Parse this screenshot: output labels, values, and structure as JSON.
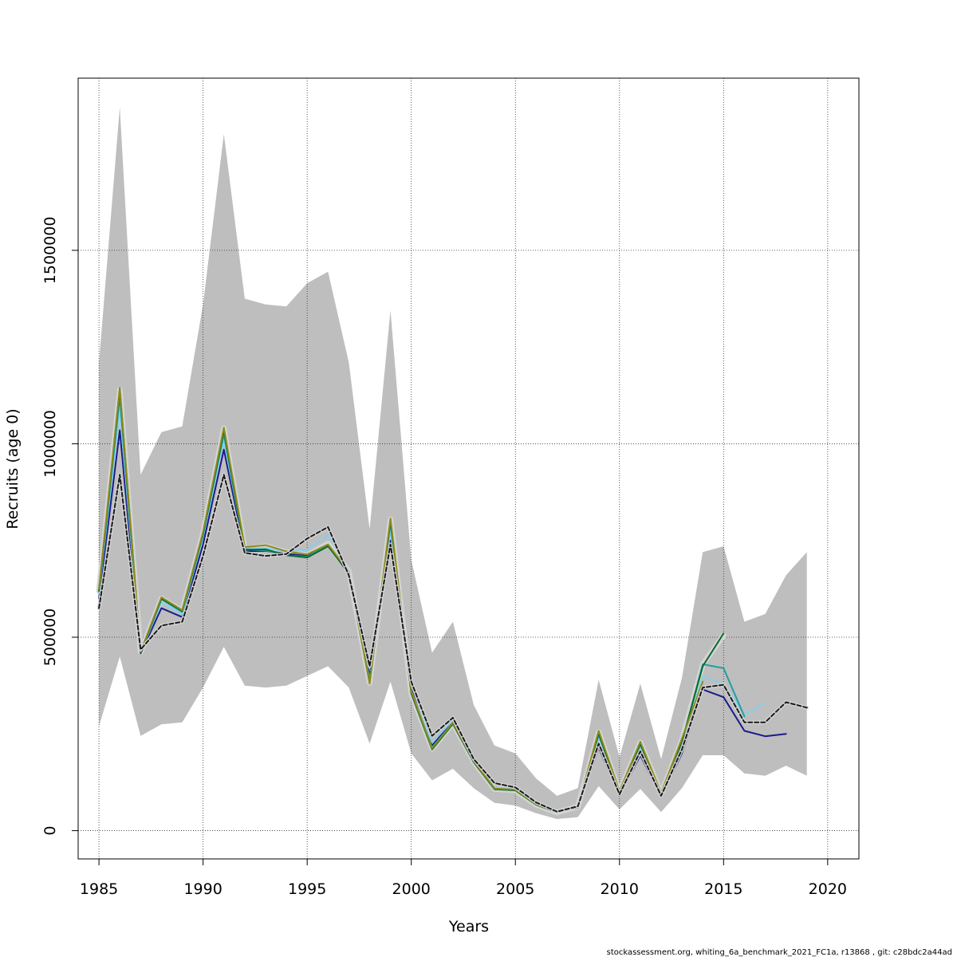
{
  "chart_data": {
    "type": "line",
    "title": "",
    "xlabel": "Years",
    "ylabel": "Recruits (age 0)",
    "xlim": [
      1984,
      2021.5
    ],
    "ylim": [
      -73000,
      1945000
    ],
    "xticks": [
      1985,
      1990,
      1995,
      2000,
      2005,
      2010,
      2015,
      2020
    ],
    "yticks": [
      0,
      500000,
      1000000,
      1500000
    ],
    "grid": true,
    "band": {
      "x": [
        1985,
        1986,
        1987,
        1988,
        1989,
        1990,
        1991,
        1992,
        1993,
        1994,
        1995,
        1996,
        1997,
        1998,
        1999,
        2000,
        2001,
        2002,
        2003,
        2004,
        2005,
        2006,
        2007,
        2008,
        2009,
        2010,
        2011,
        2012,
        2013,
        2014,
        2015,
        2016,
        2017,
        2018,
        2019
      ],
      "upper": [
        1210000,
        1870000,
        920000,
        1030000,
        1045000,
        1360000,
        1800000,
        1375000,
        1360000,
        1355000,
        1415000,
        1445000,
        1210000,
        780000,
        1345000,
        700000,
        460000,
        540000,
        325000,
        220000,
        200000,
        135000,
        90000,
        110000,
        390000,
        190000,
        380000,
        185000,
        395000,
        720000,
        735000,
        540000,
        560000,
        660000,
        720000
      ],
      "lower": [
        270000,
        450000,
        245000,
        275000,
        280000,
        370000,
        475000,
        375000,
        370000,
        375000,
        400000,
        425000,
        370000,
        225000,
        385000,
        200000,
        130000,
        160000,
        110000,
        72000,
        65000,
        45000,
        30000,
        35000,
        115000,
        55000,
        108000,
        48000,
        110000,
        195000,
        195000,
        148000,
        142000,
        168000,
        142000
      ],
      "color": "#bebebe"
    },
    "series": [
      {
        "color": "#d4d4d4",
        "width": 7,
        "dash": "",
        "x": [
          1985,
          1986,
          1987,
          1988,
          1989,
          1990,
          1991,
          1992,
          1993,
          1994,
          1995,
          1996,
          1997,
          1998,
          1999,
          2000,
          2001,
          2002,
          2003,
          2004,
          2005,
          2006,
          2007,
          2008,
          2009,
          2010,
          2011,
          2012,
          2013,
          2014,
          2015
        ],
        "values": [
          620000,
          1140000,
          462000,
          600000,
          568000,
          770000,
          1040000,
          728000,
          735000,
          720000,
          712000,
          742000,
          670000,
          382000,
          805000,
          355000,
          212000,
          278000,
          178000,
          108000,
          104000,
          67000,
          47000,
          62000,
          255000,
          100000,
          228000,
          95000,
          235000,
          430000,
          505000
        ]
      },
      {
        "color": "#1a1a8c",
        "width": 2,
        "dash": "",
        "x": [
          1985,
          1986,
          1987,
          1988,
          1989,
          1990,
          1991,
          1992,
          1993,
          1994,
          1995,
          1996,
          1997,
          1998,
          1999,
          2000,
          2001,
          2002,
          2003,
          2004,
          2005,
          2006,
          2007,
          2008,
          2009,
          2010,
          2011,
          2012,
          2013,
          2014,
          2015,
          2016,
          2017,
          2018
        ],
        "values": [
          600000,
          1035000,
          458000,
          575000,
          552000,
          740000,
          985000,
          722000,
          723000,
          716000,
          710000,
          738000,
          663000,
          400000,
          750000,
          365000,
          220000,
          282000,
          180000,
          110000,
          105000,
          70000,
          48000,
          60000,
          215000,
          92000,
          195000,
          88000,
          200000,
          365000,
          345000,
          258000,
          244000,
          250000
        ]
      },
      {
        "color": "#87ceeb",
        "width": 2,
        "dash": "",
        "x": [
          1985,
          1986,
          1987,
          1988,
          1989,
          1990,
          1991,
          1992,
          1993,
          1994,
          1995,
          1996,
          1997,
          1998,
          1999,
          2000,
          2001,
          2002,
          2003,
          2004,
          2005,
          2006,
          2007,
          2008,
          2009,
          2010,
          2011,
          2012,
          2013,
          2014,
          2015,
          2016,
          2017
        ],
        "values": [
          615000,
          1090000,
          460000,
          590000,
          560000,
          760000,
          1010000,
          730000,
          730000,
          722000,
          725000,
          765000,
          670000,
          390000,
          775000,
          360000,
          228000,
          285000,
          182000,
          112000,
          108000,
          70000,
          50000,
          64000,
          240000,
          97000,
          212000,
          90000,
          222000,
          400000,
          380000,
          300000,
          330000
        ]
      },
      {
        "color": "#20a0a0",
        "width": 2,
        "dash": "",
        "x": [
          1985,
          1986,
          1987,
          1988,
          1989,
          1990,
          1991,
          1992,
          1993,
          1994,
          1995,
          1996,
          1997,
          1998,
          1999,
          2000,
          2001,
          2002,
          2003,
          2004,
          2005,
          2006,
          2007,
          2008,
          2009,
          2010,
          2011,
          2012,
          2013,
          2014,
          2015,
          2016
        ],
        "values": [
          618000,
          1120000,
          460000,
          598000,
          565000,
          765000,
          1025000,
          727000,
          724000,
          712000,
          708000,
          738000,
          668000,
          385000,
          795000,
          358000,
          215000,
          279000,
          179000,
          109000,
          105000,
          68000,
          48000,
          62000,
          248000,
          98000,
          222000,
          93000,
          228000,
          430000,
          420000,
          295000
        ]
      },
      {
        "color": "#0b6b2d",
        "width": 2,
        "dash": "",
        "x": [
          1985,
          1986,
          1987,
          1988,
          1989,
          1990,
          1991,
          1992,
          1993,
          1994,
          1995,
          1996,
          1997,
          1998,
          1999,
          2000,
          2001,
          2002,
          2003,
          2004,
          2005,
          2006,
          2007,
          2008,
          2009,
          2010,
          2011,
          2012,
          2013,
          2014,
          2015
        ],
        "values": [
          620000,
          1140000,
          460000,
          600000,
          568000,
          768000,
          1035000,
          726000,
          727000,
          712000,
          706000,
          735000,
          666000,
          383000,
          800000,
          355000,
          210000,
          276000,
          177000,
          107000,
          104000,
          67000,
          47000,
          61000,
          252000,
          99000,
          225000,
          94000,
          230000,
          425000,
          510000
        ]
      },
      {
        "color": "#8b8b1a",
        "width": 2,
        "dash": "",
        "x": [
          1985,
          1986,
          1987,
          1988,
          1989,
          1990,
          1991,
          1992,
          1993,
          1994,
          1995,
          1996,
          1997,
          1998,
          1999,
          2000,
          2001,
          2002,
          2003,
          2004,
          2005,
          2006,
          2007,
          2008,
          2009,
          2010,
          2011,
          2012,
          2013,
          2014
        ],
        "values": [
          625000,
          1145000,
          462000,
          603000,
          570000,
          772000,
          1042000,
          733000,
          738000,
          722000,
          714000,
          740000,
          670000,
          380000,
          807000,
          360000,
          213000,
          279000,
          180000,
          109000,
          106000,
          68000,
          48000,
          62000,
          258000,
          102000,
          230000,
          97000,
          238000,
          385000
        ]
      },
      {
        "color": "#d4d4d4",
        "width": 4.5,
        "dash": "",
        "x": [
          1985,
          1986,
          1987,
          1988,
          1989,
          1990,
          1991,
          1992,
          1993,
          1994,
          1995,
          1996,
          1997,
          1998,
          1999,
          2000,
          2001,
          2002,
          2003,
          2004,
          2005,
          2006,
          2007,
          2008,
          2009,
          2010,
          2011,
          2012,
          2013,
          2014,
          2015,
          2016,
          2017,
          2018,
          2019
        ],
        "values": [
          575000,
          920000,
          468000,
          530000,
          540000,
          710000,
          920000,
          718000,
          710000,
          715000,
          755000,
          785000,
          660000,
          425000,
          740000,
          385000,
          245000,
          292000,
          185000,
          123000,
          112000,
          73000,
          49000,
          63000,
          225000,
          94000,
          205000,
          90000,
          210000,
          370000,
          377000,
          280000,
          280000,
          332000,
          318000
        ]
      },
      {
        "color": "#1a1a1a",
        "width": 2,
        "dash": "5,3",
        "x": [
          1985,
          1986,
          1987,
          1988,
          1989,
          1990,
          1991,
          1992,
          1993,
          1994,
          1995,
          1996,
          1997,
          1998,
          1999,
          2000,
          2001,
          2002,
          2003,
          2004,
          2005,
          2006,
          2007,
          2008,
          2009,
          2010,
          2011,
          2012,
          2013,
          2014,
          2015,
          2016,
          2017,
          2018,
          2019
        ],
        "values": [
          575000,
          920000,
          468000,
          530000,
          540000,
          710000,
          920000,
          718000,
          710000,
          715000,
          755000,
          785000,
          660000,
          425000,
          740000,
          385000,
          245000,
          292000,
          185000,
          123000,
          112000,
          73000,
          49000,
          63000,
          225000,
          94000,
          205000,
          90000,
          210000,
          370000,
          377000,
          280000,
          280000,
          332000,
          318000
        ]
      }
    ]
  },
  "footer": {
    "text": "stockassessment.org, whiting_6a_benchmark_2021_FC1a, r13868 , git: c28bdc2a44ad"
  }
}
